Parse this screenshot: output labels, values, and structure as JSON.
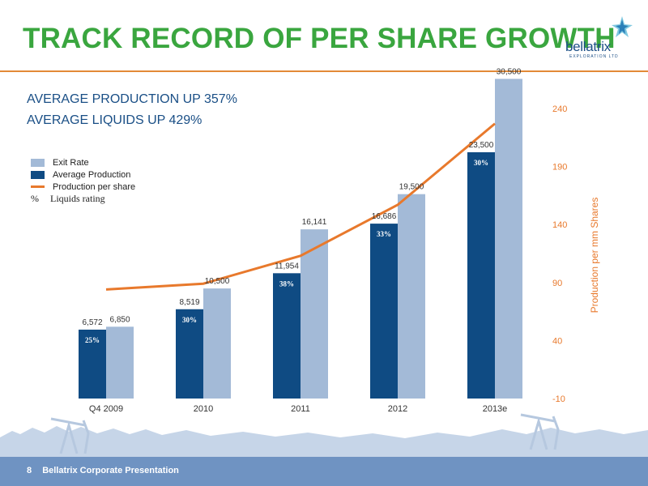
{
  "header": {
    "title": "TRACK RECORD OF PER SHARE GROWTH",
    "logo_word": "bellatrix",
    "logo_sub": "EXPLORATION LTD"
  },
  "subheads": [
    "AVERAGE PRODUCTION UP 357%",
    "AVERAGE LIQUIDS UP 429%"
  ],
  "legend": {
    "exit_rate": "Exit Rate",
    "avg_production": "Average Production",
    "production_per_share": "Production per share",
    "pct_symbol": "%",
    "liquids_rating": "Liquids rating"
  },
  "footer": {
    "page": "8",
    "text": "Bellatrix Corporate Presentation"
  },
  "colors": {
    "title_green": "#3aa63f",
    "avg_bar": "#0f4b83",
    "exit_bar": "#a3bad7",
    "line_orange": "#e8792c",
    "footer_blue": "#6f93c2"
  },
  "chart_data": {
    "type": "bar",
    "categories": [
      "Q4 2009",
      "2010",
      "2011",
      "2012",
      "2013e"
    ],
    "series": [
      {
        "name": "Average Production",
        "values": [
          6572,
          8519,
          11954,
          16686,
          23500
        ],
        "labels": [
          "6,572",
          "8,519",
          "11,954",
          "16,686",
          "23,500"
        ]
      },
      {
        "name": "Exit Rate",
        "values": [
          6850,
          10500,
          16141,
          19500,
          30500
        ],
        "labels": [
          "6,850",
          "10,500",
          "16,141",
          "19,500",
          "30,500"
        ]
      }
    ],
    "liquids_rating": [
      "25%",
      "30%",
      "38%",
      "33%",
      "30%"
    ],
    "line_series": {
      "name": "Production per share",
      "values": [
        84,
        89,
        113,
        157,
        227
      ]
    },
    "y2_ticks": [
      "240",
      "190",
      "140",
      "90",
      "40",
      "-10"
    ],
    "y2_range": [
      -10,
      240
    ],
    "y2_label": "Production per mm Shares",
    "bar_range": [
      0,
      33000
    ]
  }
}
